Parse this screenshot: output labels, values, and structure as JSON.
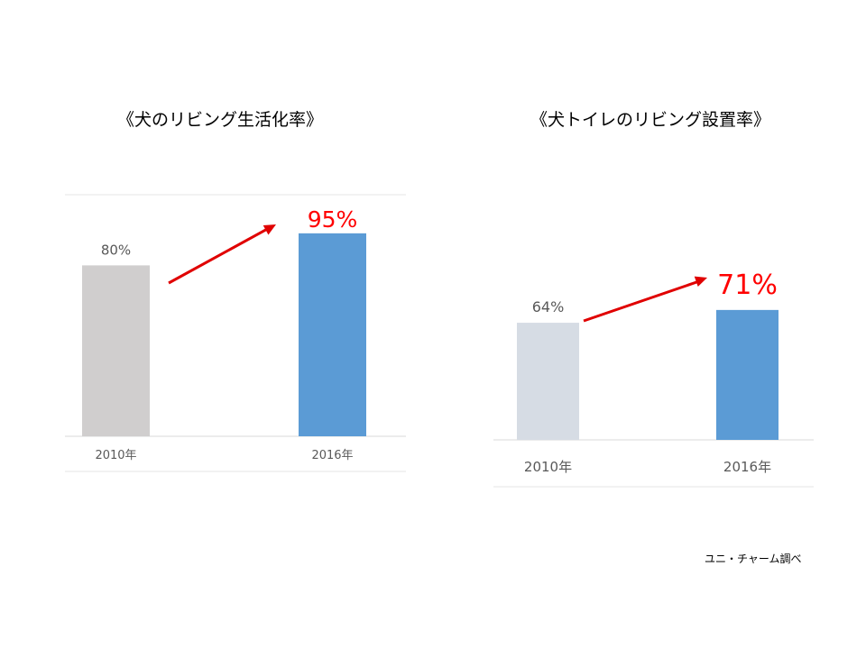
{
  "chart_data": [
    {
      "type": "bar",
      "title": "《犬のリビング生活化率》",
      "categories": [
        "2010年",
        "2016年"
      ],
      "values": [
        80,
        95
      ],
      "value_labels": [
        "80%",
        "95%"
      ],
      "ylim": [
        0,
        100
      ],
      "colors": [
        "#d0cece",
        "#5b9bd5"
      ],
      "highlight_color": "#ff0000",
      "arrow_color": "#e00000",
      "grid": false
    },
    {
      "type": "bar",
      "title": "《犬トイレのリビング設置率》",
      "categories": [
        "2010年",
        "2016年"
      ],
      "values": [
        64,
        71
      ],
      "value_labels": [
        "64%",
        "71%"
      ],
      "ylim": [
        0,
        100
      ],
      "colors": [
        "#d6dce4",
        "#5b9bd5"
      ],
      "highlight_color": "#ff0000",
      "arrow_color": "#e00000",
      "grid": false
    }
  ],
  "source_note": "ユニ・チャーム調べ"
}
